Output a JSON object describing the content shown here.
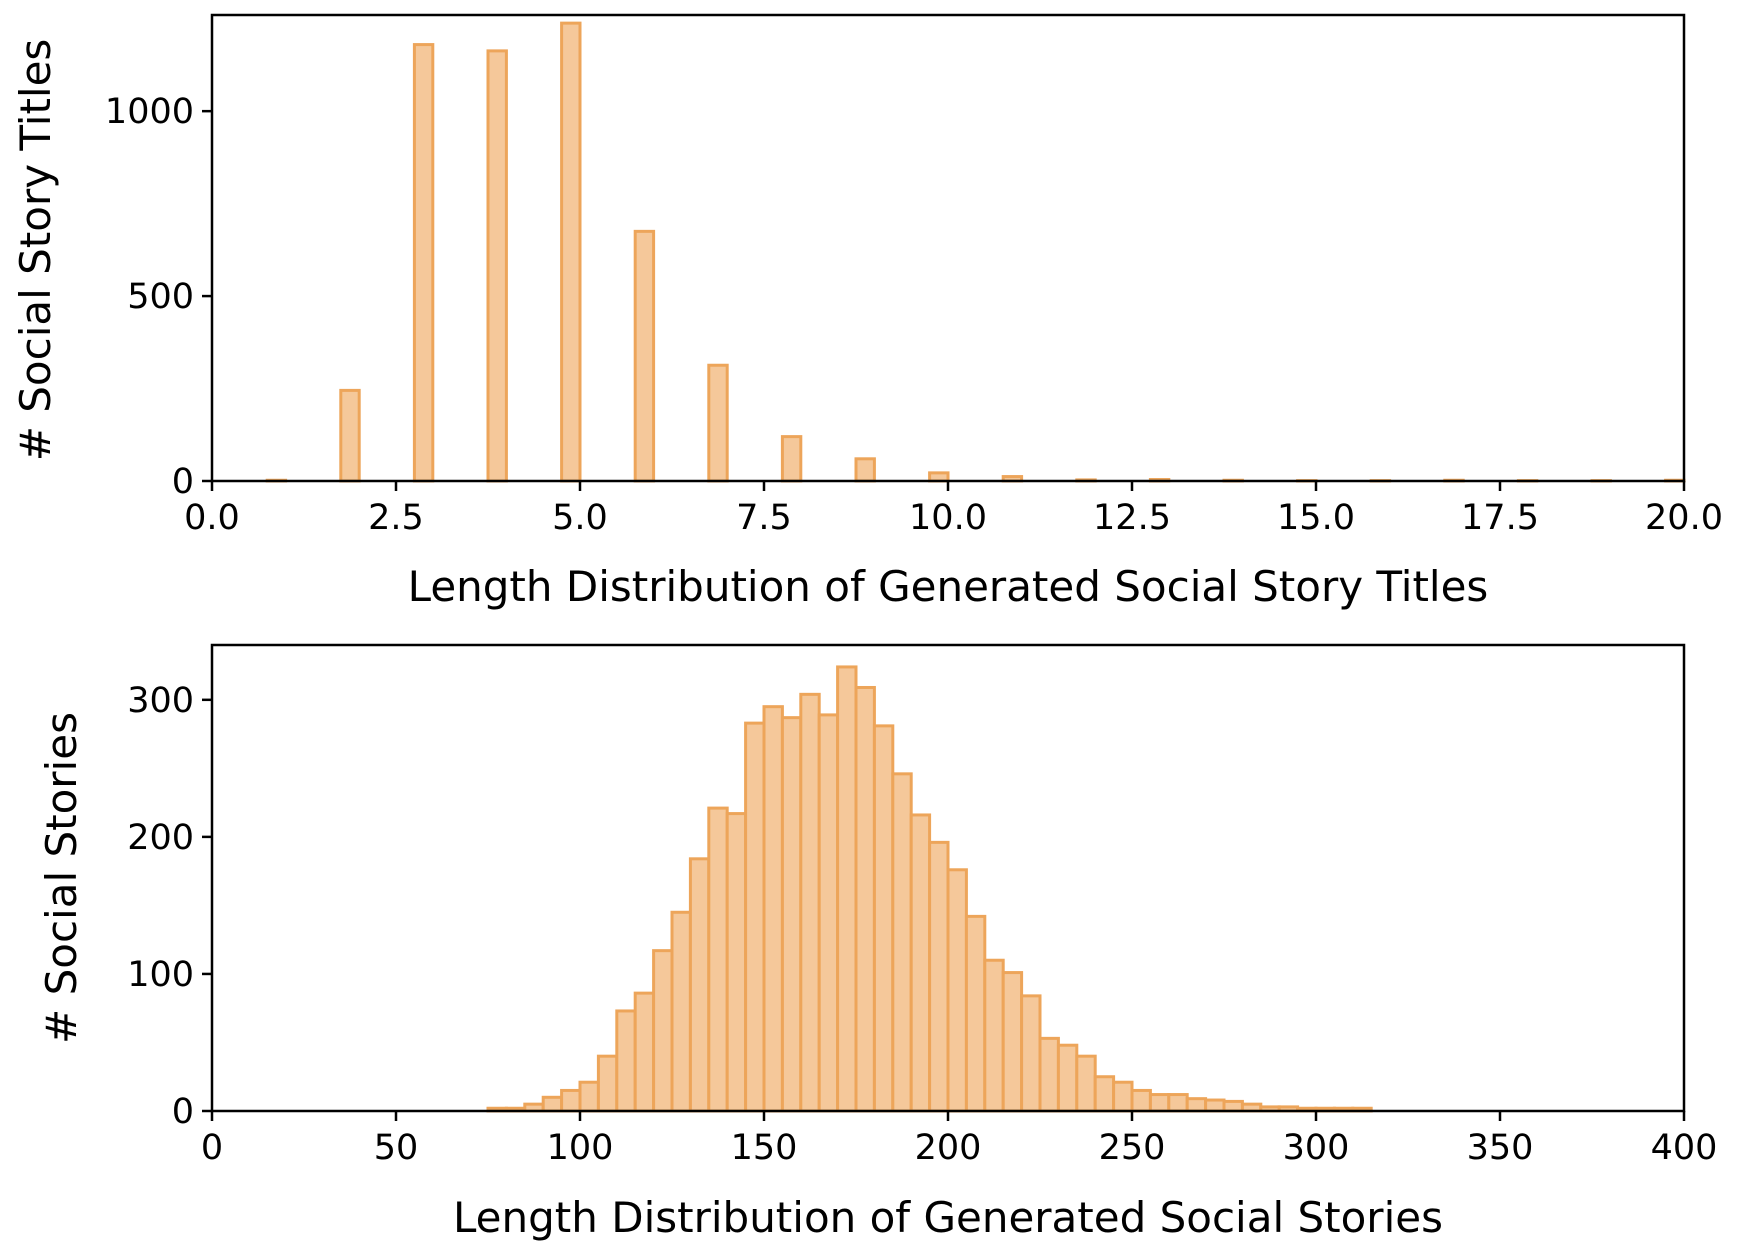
{
  "chart_data": [
    {
      "type": "bar",
      "xlabel": "Length Distribution of Generated Social Story Titles",
      "ylabel": "# Social Story Titles",
      "xlim": [
        0,
        20
      ],
      "ylim": [
        0,
        1260
      ],
      "xticks": [
        "0.0",
        "2.5",
        "5.0",
        "7.5",
        "10.0",
        "12.5",
        "15.0",
        "17.5",
        "20.0"
      ],
      "yticks": [
        "0",
        "500",
        "1000"
      ],
      "bin_width": 0.25,
      "bar_color": "#f5c89a",
      "edge_color": "#eda55a",
      "grid": false,
      "bars": [
        {
          "x": 1,
          "value": 2
        },
        {
          "x": 2,
          "value": 245
        },
        {
          "x": 3,
          "value": 1180
        },
        {
          "x": 4,
          "value": 1163
        },
        {
          "x": 5,
          "value": 1238
        },
        {
          "x": 6,
          "value": 675
        },
        {
          "x": 7,
          "value": 313
        },
        {
          "x": 8,
          "value": 120
        },
        {
          "x": 9,
          "value": 60
        },
        {
          "x": 10,
          "value": 22
        },
        {
          "x": 11,
          "value": 12
        },
        {
          "x": 12,
          "value": 3
        },
        {
          "x": 13,
          "value": 4
        },
        {
          "x": 14,
          "value": 2
        },
        {
          "x": 15,
          "value": 1
        },
        {
          "x": 16,
          "value": 1
        },
        {
          "x": 17,
          "value": 2
        },
        {
          "x": 18,
          "value": 1
        },
        {
          "x": 19,
          "value": 1
        },
        {
          "x": 20,
          "value": 2
        }
      ]
    },
    {
      "type": "bar",
      "xlabel": "Length Distribution of Generated  Social Stories",
      "ylabel": "# Social Stories",
      "xlim": [
        0,
        400
      ],
      "ylim": [
        0,
        340
      ],
      "xticks": [
        "0",
        "50",
        "100",
        "150",
        "200",
        "250",
        "300",
        "350",
        "400"
      ],
      "yticks": [
        "0",
        "100",
        "200",
        "300"
      ],
      "bin_start": 75,
      "bin_width": 5,
      "bar_color": "#f5c89a",
      "edge_color": "#eda55a",
      "grid": false,
      "values": [
        2,
        2,
        5,
        10,
        15,
        21,
        40,
        73,
        86,
        117,
        145,
        184,
        221,
        217,
        283,
        295,
        287,
        304,
        289,
        324,
        309,
        281,
        246,
        216,
        196,
        176,
        142,
        110,
        101,
        84,
        53,
        48,
        40,
        25,
        21,
        15,
        12,
        12,
        9,
        8,
        7,
        5,
        3,
        3,
        2,
        2,
        2,
        2
      ]
    }
  ]
}
